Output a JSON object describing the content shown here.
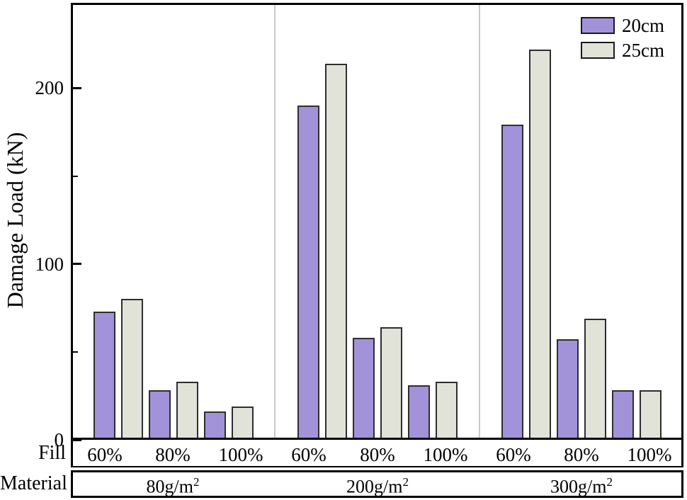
{
  "y_axis": {
    "label": "Damage Load (kN)"
  },
  "row_headers": {
    "fill": "Fill",
    "material": "Material"
  },
  "colors": {
    "series_20cm": "#a292da",
    "series_25cm": "#e1e3d9",
    "bar_border": "#2e2e2e",
    "separator": "#c9c9c9",
    "frame": "#000000"
  },
  "chart_data": {
    "type": "bar",
    "title": "",
    "ylabel": "Damage Load (kN)",
    "ylim": [
      0,
      250
    ],
    "y_major_ticks": [
      0,
      100,
      200
    ],
    "y_minor_ticks": [
      50,
      150
    ],
    "grid": false,
    "legend_position": "top-right",
    "series_names": [
      "20cm",
      "25cm"
    ],
    "x_levels": {
      "fill": "Fill",
      "material": "Material"
    },
    "panels": [
      {
        "material_base": "80g/m",
        "material_sup": "2",
        "fills": [
          "60%",
          "80%",
          "100%"
        ],
        "series": [
          {
            "name": "20cm",
            "values": [
              73,
              28,
              16
            ]
          },
          {
            "name": "25cm",
            "values": [
              80,
              33,
              19
            ]
          }
        ]
      },
      {
        "material_base": "200g/m",
        "material_sup": "2",
        "fills": [
          "60%",
          "80%",
          "100%"
        ],
        "series": [
          {
            "name": "20cm",
            "values": [
              190,
              58,
              31
            ]
          },
          {
            "name": "25cm",
            "values": [
              214,
              64,
              33
            ]
          }
        ]
      },
      {
        "material_base": "300g/m",
        "material_sup": "2",
        "fills": [
          "60%",
          "80%",
          "100%"
        ],
        "series": [
          {
            "name": "20cm",
            "values": [
              179,
              57,
              28
            ]
          },
          {
            "name": "25cm",
            "values": [
              222,
              69,
              28
            ]
          }
        ]
      }
    ]
  }
}
